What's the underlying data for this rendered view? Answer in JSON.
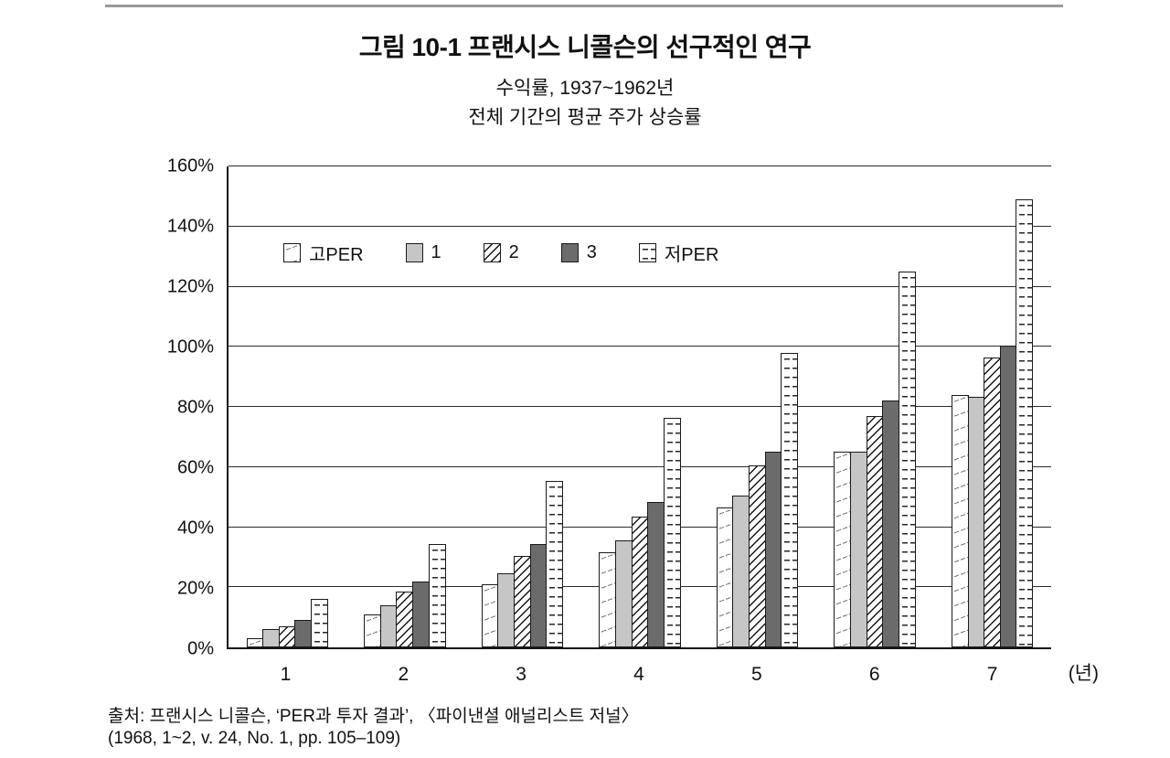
{
  "page": {
    "title": "그림 10-1  프랜시스 니콜슨의 선구적인 연구",
    "subtitle1": "수익률, 1937~1962년",
    "subtitle2": "전체 기간의 평균 주가 상승률",
    "source_line1": "출처: 프랜시스 니콜슨, ‘PER과 투자 결과’, 〈파이낸셜 애널리스트 저널〉",
    "source_line2": "(1968, 1~2, v. 24, No. 1, pp. 105–109)"
  },
  "chart_data": {
    "type": "bar",
    "title": "그림 10-1 프랜시스 니콜슨의 선구적인 연구",
    "subtitle": "수익률, 1937~1962년 — 전체 기간의 평균 주가 상승률",
    "categories": [
      "1",
      "2",
      "3",
      "4",
      "5",
      "6",
      "7"
    ],
    "x_axis_unit_label": "(년)",
    "ylabel": "",
    "ylim": [
      0,
      160
    ],
    "y_tick_step": 20,
    "y_tick_labels": [
      "0%",
      "20%",
      "40%",
      "60%",
      "80%",
      "100%",
      "120%",
      "140%",
      "160%"
    ],
    "grid": true,
    "legend_position": "inside-top-left",
    "series": [
      {
        "name": "고PER",
        "pattern": "speckle",
        "values": [
          3,
          11,
          21,
          31.5,
          46.5,
          65,
          84
        ]
      },
      {
        "name": "1",
        "pattern": "light-gray",
        "values": [
          6,
          14,
          24.5,
          35.5,
          50.5,
          65,
          83.5
        ]
      },
      {
        "name": "2",
        "pattern": "diagonal-hatch",
        "values": [
          7,
          18.5,
          30.5,
          43.5,
          60.5,
          77,
          96.5
        ]
      },
      {
        "name": "3",
        "pattern": "dark-gray",
        "values": [
          9,
          22,
          34.5,
          48.5,
          65,
          82,
          100.5
        ]
      },
      {
        "name": "저PER",
        "pattern": "dash-brick",
        "values": [
          16,
          34.5,
          55.5,
          76.5,
          98,
          125,
          149
        ]
      }
    ]
  },
  "colors": {
    "light_gray": "#c6c6c6",
    "dark_gray": "#6b6b6b",
    "bar_border": "#1a1a1a",
    "grid_line": "#2c2c2c",
    "top_rule": "#9a9a9a"
  }
}
